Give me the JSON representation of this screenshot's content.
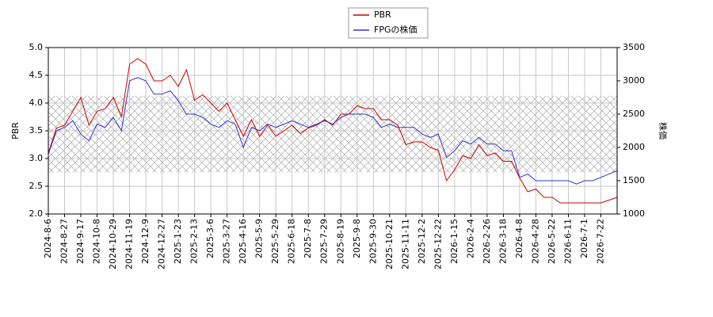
{
  "chart_data": {
    "type": "line",
    "categories": [
      "2024-8-6",
      null,
      "2024-8-27",
      null,
      "2024-9-17",
      null,
      "2024-10-8",
      null,
      "2024-10-29",
      null,
      "2024-11-19",
      null,
      "2024-12-9",
      null,
      "2024-12-27",
      null,
      "2025-1-23",
      null,
      "2025-2-13",
      null,
      "2025-3-6",
      null,
      "2025-3-27",
      null,
      "2025-4-16",
      null,
      "2025-5-9",
      null,
      "2025-5-29",
      null,
      "2025-6-18",
      null,
      "2025-7-8",
      null,
      "2025-7-29",
      null,
      "2025-8-19",
      null,
      "2025-9-8",
      null,
      "2025-9-30",
      null,
      "2025-10-21",
      null,
      "2025-11-11",
      null,
      "2025-12-2",
      null,
      "2025-12-22",
      null,
      "2026-1-15",
      null,
      "2026-2-4",
      null,
      "2026-2-26",
      null,
      "2026-3-18",
      null,
      "2026-4-8",
      null,
      "2026-4-28",
      null,
      "2026-5-22",
      null,
      "2026-6-11",
      null,
      "2026-7-1",
      null,
      "2026-7-22",
      null,
      null
    ],
    "series": [
      {
        "name": "PBR",
        "color": "#cc0000",
        "axis": "y",
        "values": [
          3.1,
          3.55,
          3.6,
          3.85,
          4.1,
          3.6,
          3.85,
          3.9,
          4.1,
          3.75,
          4.7,
          4.8,
          4.7,
          4.4,
          4.4,
          4.5,
          4.3,
          4.6,
          4.05,
          4.15,
          4.0,
          3.85,
          4.0,
          3.7,
          3.4,
          3.7,
          3.4,
          3.6,
          3.4,
          3.5,
          3.6,
          3.45,
          3.55,
          3.6,
          3.7,
          3.6,
          3.8,
          3.8,
          3.95,
          3.9,
          3.9,
          3.7,
          3.7,
          3.6,
          3.25,
          3.3,
          3.3,
          3.2,
          3.15,
          2.6,
          2.8,
          3.05,
          3.0,
          3.25,
          3.05,
          3.1,
          2.95,
          2.95,
          2.65,
          2.4,
          2.45,
          2.3,
          2.3,
          2.2,
          2.2,
          2.2,
          2.2,
          2.2,
          2.2,
          2.25,
          2.3
        ]
      },
      {
        "name": "FPGの株価",
        "color": "#3333cc",
        "axis": "y2",
        "values": [
          1900,
          2250,
          2300,
          2400,
          2200,
          2100,
          2350,
          2300,
          2450,
          2250,
          3000,
          3050,
          3000,
          2800,
          2800,
          2850,
          2700,
          2500,
          2500,
          2450,
          2350,
          2300,
          2400,
          2350,
          2000,
          2300,
          2250,
          2350,
          2300,
          2350,
          2400,
          2350,
          2300,
          2350,
          2400,
          2350,
          2450,
          2500,
          2500,
          2500,
          2450,
          2300,
          2350,
          2300,
          2300,
          2300,
          2200,
          2150,
          2200,
          1850,
          1950,
          2100,
          2050,
          2150,
          2050,
          2050,
          1950,
          1950,
          1550,
          1600,
          1500,
          1500,
          1500,
          1500,
          1500,
          1450,
          1500,
          1500,
          1550,
          1600,
          1650
        ]
      }
    ],
    "ylabel": "PBR",
    "y2label": "株価",
    "ylim": [
      2.0,
      5.0
    ],
    "yticks": [
      {
        "value": 2.0,
        "label": "2.0"
      },
      {
        "value": 2.5,
        "label": "2.5"
      },
      {
        "value": 3.0,
        "label": "3.0"
      },
      {
        "value": 3.5,
        "label": "3.5"
      },
      {
        "value": 4.0,
        "label": "4.0"
      },
      {
        "value": 4.5,
        "label": "4.5"
      },
      {
        "value": 5.0,
        "label": "5.0"
      }
    ],
    "y2lim": [
      1000,
      3500
    ],
    "y2ticks": [
      1000,
      1500,
      2000,
      2500,
      3000,
      3500
    ],
    "shaded_range": [
      2.75,
      4.13
    ],
    "grid": true,
    "legend": "top"
  }
}
